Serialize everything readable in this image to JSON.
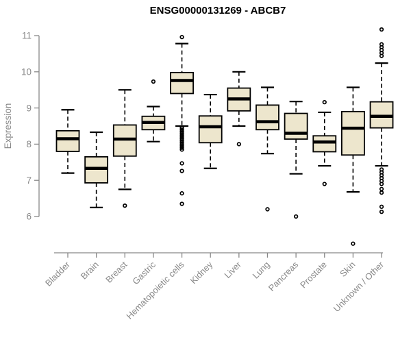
{
  "chart_data": {
    "type": "boxplot",
    "title": "ENSG00000131269 - ABCB7",
    "ylabel": "Expression",
    "xlabel": "",
    "ylim": [
      6,
      11
    ],
    "yticks": [
      6,
      7,
      8,
      9,
      10,
      11
    ],
    "grid": false,
    "legend": "none",
    "categories": [
      "Bladder",
      "Brain",
      "Breast",
      "Gastric",
      "Hematopoietic cells",
      "Kidney",
      "Liver",
      "Lung",
      "Pancreas",
      "Prostate",
      "Skin",
      "Unknown / Other"
    ],
    "boxes": [
      {
        "category": "Bladder",
        "whisker_low": 7.2,
        "q1": 7.8,
        "median": 8.15,
        "q3": 8.37,
        "whisker_high": 8.95,
        "outliers": []
      },
      {
        "category": "Brain",
        "whisker_low": 6.25,
        "q1": 6.93,
        "median": 7.33,
        "q3": 7.65,
        "whisker_high": 8.33,
        "outliers": []
      },
      {
        "category": "Breast",
        "whisker_low": 6.75,
        "q1": 7.67,
        "median": 8.14,
        "q3": 8.53,
        "whisker_high": 9.5,
        "outliers": [
          6.3
        ]
      },
      {
        "category": "Gastric",
        "whisker_low": 8.07,
        "q1": 8.4,
        "median": 8.6,
        "q3": 8.77,
        "whisker_high": 9.04,
        "outliers": [
          9.73
        ]
      },
      {
        "category": "Hematopoietic cells",
        "whisker_low": 8.5,
        "q1": 9.4,
        "median": 9.76,
        "q3": 9.98,
        "whisker_high": 10.78,
        "outliers": [
          10.96,
          8.45,
          8.4,
          8.35,
          8.3,
          8.25,
          8.2,
          8.15,
          8.1,
          8.05,
          8.0,
          7.95,
          7.9,
          7.85,
          7.47,
          7.26,
          6.64,
          6.35
        ]
      },
      {
        "category": "Kidney",
        "whisker_low": 7.33,
        "q1": 8.04,
        "median": 8.48,
        "q3": 8.78,
        "whisker_high": 9.37,
        "outliers": []
      },
      {
        "category": "Liver",
        "whisker_low": 8.5,
        "q1": 8.92,
        "median": 9.25,
        "q3": 9.55,
        "whisker_high": 10.0,
        "outliers": [
          8.0
        ]
      },
      {
        "category": "Lung",
        "whisker_low": 7.74,
        "q1": 8.4,
        "median": 8.62,
        "q3": 9.08,
        "whisker_high": 9.57,
        "outliers": [
          6.2
        ]
      },
      {
        "category": "Pancreas",
        "whisker_low": 7.18,
        "q1": 8.14,
        "median": 8.3,
        "q3": 8.85,
        "whisker_high": 9.18,
        "outliers": [
          6.0
        ]
      },
      {
        "category": "Prostate",
        "whisker_low": 7.4,
        "q1": 7.79,
        "median": 8.06,
        "q3": 8.23,
        "whisker_high": 8.88,
        "outliers": [
          9.16,
          6.9
        ]
      },
      {
        "category": "Skin",
        "whisker_low": 6.68,
        "q1": 7.7,
        "median": 8.44,
        "q3": 8.9,
        "whisker_high": 9.57,
        "outliers": [
          5.25
        ]
      },
      {
        "category": "Unknown / Other",
        "whisker_low": 7.4,
        "q1": 8.45,
        "median": 8.77,
        "q3": 9.17,
        "whisker_high": 10.24,
        "outliers": [
          11.17,
          10.76,
          10.68,
          10.6,
          10.52,
          10.44,
          7.3,
          7.22,
          7.14,
          7.06,
          6.98,
          6.9,
          6.76,
          6.66,
          6.27,
          6.13
        ]
      }
    ],
    "colors": {
      "box_fill": "#EDE6CD",
      "box_stroke": "#000000",
      "median": "#000000",
      "axis": "#888888",
      "title": "#000000",
      "background": "#ffffff"
    }
  }
}
